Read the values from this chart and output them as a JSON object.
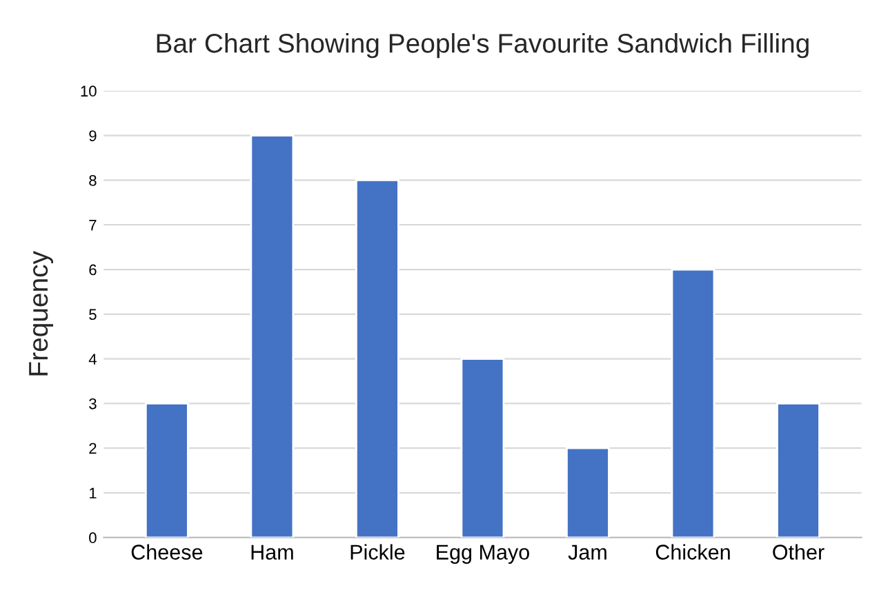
{
  "chart_data": {
    "type": "bar",
    "title": "Bar Chart Showing People's Favourite Sandwich Filling",
    "ylabel": "Frequency",
    "categories": [
      "Cheese",
      "Ham",
      "Pickle",
      "Egg Mayo",
      "Jam",
      "Chicken",
      "Other"
    ],
    "values": [
      3,
      9,
      8,
      4,
      2,
      6,
      3
    ],
    "color": "#4472c4",
    "ylim": [
      0,
      10
    ],
    "yticks": [
      0,
      1,
      2,
      3,
      4,
      5,
      6,
      7,
      8,
      9,
      10
    ],
    "grid": "y",
    "legend": false
  }
}
